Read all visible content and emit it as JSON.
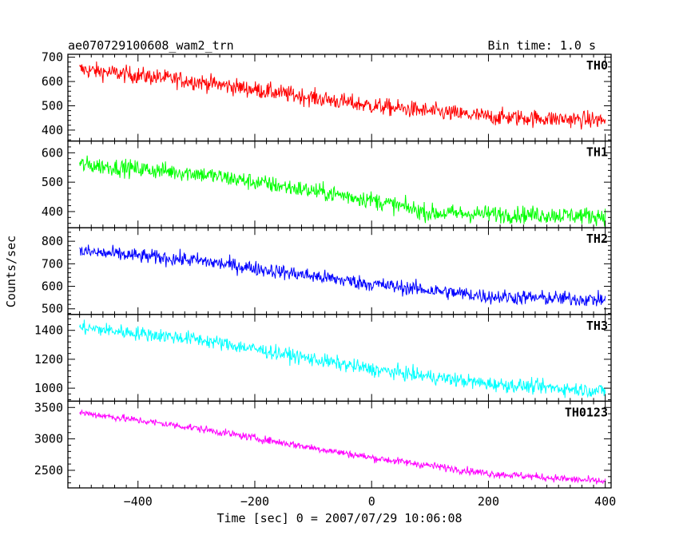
{
  "chart_data": {
    "type": "line",
    "title": "ae070729100608_wam2_trn",
    "bin_time_label": "Bin time: 1.0 s",
    "xlabel": "Time [sec] 0 = 2007/07/29 10:06:08",
    "ylabel": "Counts/sec",
    "x_range": [
      -500,
      400
    ],
    "xlim": [
      -520,
      410
    ],
    "x_ticks": [
      -400,
      -200,
      0,
      200,
      400
    ],
    "panels": [
      {
        "name": "TH0",
        "color": "#ff0000",
        "ylim": [
          355,
          712
        ],
        "y_ticks": [
          400,
          500,
          600,
          700
        ],
        "trend": [
          [
            -500,
            650
          ],
          [
            -300,
            600
          ],
          [
            0,
            500
          ],
          [
            200,
            455
          ],
          [
            400,
            440
          ]
        ],
        "noise": 32
      },
      {
        "name": "TH1",
        "color": "#00ff00",
        "ylim": [
          345,
          640
        ],
        "y_ticks": [
          400,
          500,
          600
        ],
        "trend": [
          [
            -500,
            560
          ],
          [
            -300,
            530
          ],
          [
            0,
            440
          ],
          [
            100,
            395
          ],
          [
            400,
            385
          ]
        ],
        "noise": 27
      },
      {
        "name": "TH2",
        "color": "#0000ff",
        "ylim": [
          475,
          860
        ],
        "y_ticks": [
          500,
          600,
          700,
          800
        ],
        "trend": [
          [
            -500,
            755
          ],
          [
            -300,
            715
          ],
          [
            0,
            610
          ],
          [
            200,
            555
          ],
          [
            400,
            540
          ]
        ],
        "noise": 30
      },
      {
        "name": "TH3",
        "color": "#00ffff",
        "ylim": [
          910,
          1510
        ],
        "y_ticks": [
          1000,
          1200,
          1400
        ],
        "trend": [
          [
            -500,
            1420
          ],
          [
            -300,
            1340
          ],
          [
            0,
            1130
          ],
          [
            200,
            1030
          ],
          [
            400,
            980
          ]
        ],
        "noise": 45
      },
      {
        "name": "TH0123",
        "color": "#ff00ff",
        "ylim": [
          2220,
          3600
        ],
        "y_ticks": [
          2500,
          3000,
          3500
        ],
        "trend": [
          [
            -500,
            3420
          ],
          [
            -300,
            3170
          ],
          [
            0,
            2700
          ],
          [
            200,
            2450
          ],
          [
            400,
            2320
          ]
        ],
        "noise": 55
      }
    ]
  }
}
